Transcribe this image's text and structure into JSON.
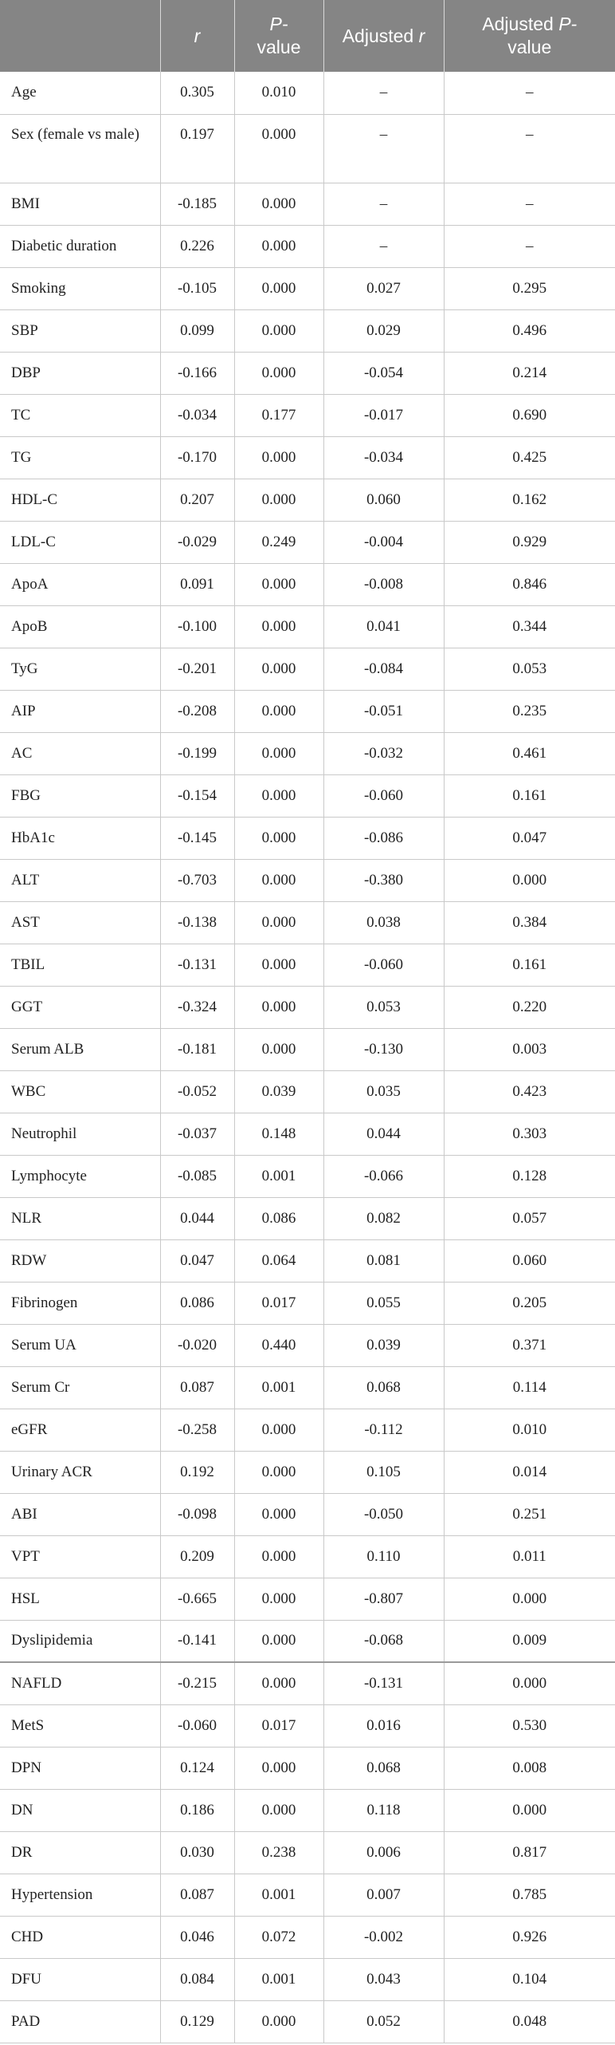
{
  "header": {
    "c0": "",
    "c1": "r",
    "c2a": "P-",
    "c2b": "value",
    "c3a": "Adjusted",
    "c3b": "r",
    "c4a": "Adjusted ",
    "c4b": "P-",
    "c4c": "value"
  },
  "rows": [
    {
      "label": "Age",
      "r": "0.305",
      "p": "0.010",
      "ar": "–",
      "ap": "–"
    },
    {
      "label": "Sex (female vs male)",
      "r": "0.197",
      "p": "0.000",
      "ar": "–",
      "ap": "–"
    },
    {
      "label": "BMI",
      "r": "-0.185",
      "p": "0.000",
      "ar": "–",
      "ap": "–"
    },
    {
      "label": "Diabetic duration",
      "r": "0.226",
      "p": "0.000",
      "ar": "–",
      "ap": "–"
    },
    {
      "label": "Smoking",
      "r": "-0.105",
      "p": "0.000",
      "ar": "0.027",
      "ap": "0.295"
    },
    {
      "label": "SBP",
      "r": "0.099",
      "p": "0.000",
      "ar": "0.029",
      "ap": "0.496"
    },
    {
      "label": "DBP",
      "r": "-0.166",
      "p": "0.000",
      "ar": "-0.054",
      "ap": "0.214"
    },
    {
      "label": "TC",
      "r": "-0.034",
      "p": "0.177",
      "ar": "-0.017",
      "ap": "0.690"
    },
    {
      "label": "TG",
      "r": "-0.170",
      "p": "0.000",
      "ar": "-0.034",
      "ap": "0.425"
    },
    {
      "label": "HDL-C",
      "r": "0.207",
      "p": "0.000",
      "ar": "0.060",
      "ap": "0.162"
    },
    {
      "label": "LDL-C",
      "r": "-0.029",
      "p": "0.249",
      "ar": "-0.004",
      "ap": "0.929"
    },
    {
      "label": "ApoA",
      "r": "0.091",
      "p": "0.000",
      "ar": "-0.008",
      "ap": "0.846"
    },
    {
      "label": "ApoB",
      "r": "-0.100",
      "p": "0.000",
      "ar": "0.041",
      "ap": "0.344"
    },
    {
      "label": "TyG",
      "r": "-0.201",
      "p": "0.000",
      "ar": "-0.084",
      "ap": "0.053"
    },
    {
      "label": "AIP",
      "r": "-0.208",
      "p": "0.000",
      "ar": "-0.051",
      "ap": "0.235"
    },
    {
      "label": "AC",
      "r": "-0.199",
      "p": "0.000",
      "ar": "-0.032",
      "ap": "0.461"
    },
    {
      "label": "FBG",
      "r": "-0.154",
      "p": "0.000",
      "ar": "-0.060",
      "ap": "0.161"
    },
    {
      "label": "HbA1c",
      "r": "-0.145",
      "p": "0.000",
      "ar": "-0.086",
      "ap": "0.047"
    },
    {
      "label": "ALT",
      "r": "-0.703",
      "p": "0.000",
      "ar": "-0.380",
      "ap": "0.000"
    },
    {
      "label": "AST",
      "r": "-0.138",
      "p": "0.000",
      "ar": "0.038",
      "ap": "0.384"
    },
    {
      "label": "TBIL",
      "r": "-0.131",
      "p": "0.000",
      "ar": "-0.060",
      "ap": "0.161"
    },
    {
      "label": "GGT",
      "r": "-0.324",
      "p": "0.000",
      "ar": "0.053",
      "ap": "0.220"
    },
    {
      "label": "Serum ALB",
      "r": "-0.181",
      "p": "0.000",
      "ar": "-0.130",
      "ap": "0.003"
    },
    {
      "label": "WBC",
      "r": "-0.052",
      "p": "0.039",
      "ar": "0.035",
      "ap": "0.423"
    },
    {
      "label": "Neutrophil",
      "r": "-0.037",
      "p": "0.148",
      "ar": "0.044",
      "ap": "0.303"
    },
    {
      "label": "Lymphocyte",
      "r": "-0.085",
      "p": "0.001",
      "ar": "-0.066",
      "ap": "0.128"
    },
    {
      "label": "NLR",
      "r": "0.044",
      "p": "0.086",
      "ar": "0.082",
      "ap": "0.057"
    },
    {
      "label": "RDW",
      "r": "0.047",
      "p": "0.064",
      "ar": "0.081",
      "ap": "0.060"
    },
    {
      "label": "Fibrinogen",
      "r": "0.086",
      "p": "0.017",
      "ar": "0.055",
      "ap": "0.205"
    },
    {
      "label": "Serum UA",
      "r": "-0.020",
      "p": "0.440",
      "ar": "0.039",
      "ap": "0.371"
    },
    {
      "label": "Serum Cr",
      "r": "0.087",
      "p": "0.001",
      "ar": "0.068",
      "ap": "0.114"
    },
    {
      "label": "eGFR",
      "r": "-0.258",
      "p": "0.000",
      "ar": "-0.112",
      "ap": "0.010"
    },
    {
      "label": "Urinary ACR",
      "r": "0.192",
      "p": "0.000",
      "ar": "0.105",
      "ap": "0.014"
    },
    {
      "label": "ABI",
      "r": "-0.098",
      "p": "0.000",
      "ar": "-0.050",
      "ap": "0.251"
    },
    {
      "label": "VPT",
      "r": "0.209",
      "p": "0.000",
      "ar": "0.110",
      "ap": "0.011"
    },
    {
      "label": "HSL",
      "r": "-0.665",
      "p": "0.000",
      "ar": "-0.807",
      "ap": "0.000"
    },
    {
      "label": "Dyslipidemia",
      "r": "-0.141",
      "p": "0.000",
      "ar": "-0.068",
      "ap": "0.009"
    },
    {
      "label": "NAFLD",
      "r": "-0.215",
      "p": "0.000",
      "ar": "-0.131",
      "ap": "0.000"
    },
    {
      "label": "MetS",
      "r": "-0.060",
      "p": "0.017",
      "ar": "0.016",
      "ap": "0.530"
    },
    {
      "label": "DPN",
      "r": "0.124",
      "p": "0.000",
      "ar": "0.068",
      "ap": "0.008"
    },
    {
      "label": "DN",
      "r": "0.186",
      "p": "0.000",
      "ar": "0.118",
      "ap": "0.000"
    },
    {
      "label": "DR",
      "r": "0.030",
      "p": "0.238",
      "ar": "0.006",
      "ap": "0.817"
    },
    {
      "label": "Hypertension",
      "r": "0.087",
      "p": "0.001",
      "ar": "0.007",
      "ap": "0.785"
    },
    {
      "label": "CHD",
      "r": "0.046",
      "p": "0.072",
      "ar": "-0.002",
      "ap": "0.926"
    },
    {
      "label": "DFU",
      "r": "0.084",
      "p": "0.001",
      "ar": "0.043",
      "ap": "0.104"
    },
    {
      "label": "PAD",
      "r": "0.129",
      "p": "0.000",
      "ar": "0.052",
      "ap": "0.048"
    }
  ]
}
